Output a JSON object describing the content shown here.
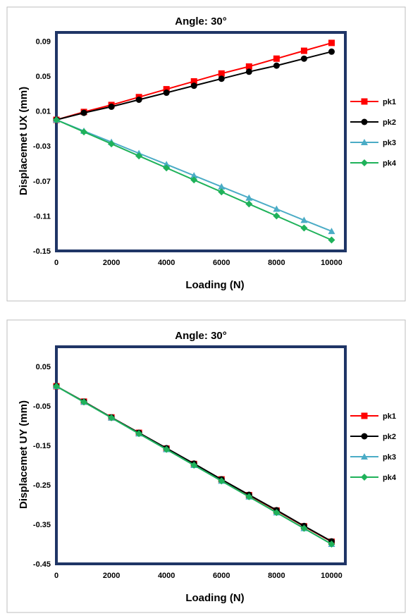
{
  "chart_data": [
    {
      "type": "line",
      "title": "Angle: 30°",
      "xlabel": "Loading (N)",
      "ylabel": "Displacemet UX (mm)",
      "xlim": [
        0,
        10500
      ],
      "ylim": [
        -0.15,
        0.1
      ],
      "xticks": [
        0,
        2000,
        4000,
        6000,
        8000,
        10000
      ],
      "yticks": [
        0.09,
        0.05,
        0.01,
        -0.03,
        -0.07,
        -0.11,
        -0.15
      ],
      "ytick_labels": [
        "0.09",
        "0.05",
        "0.01",
        "-0.03",
        "-0.07",
        "-0.11",
        "-0.15"
      ],
      "x": [
        0,
        1000,
        2000,
        3000,
        4000,
        5000,
        6000,
        7000,
        8000,
        9000,
        10000
      ],
      "series": [
        {
          "name": "pk1",
          "color": "#ff0000",
          "marker": "square",
          "values": [
            0.0,
            0.009,
            0.017,
            0.026,
            0.035,
            0.044,
            0.053,
            0.061,
            0.07,
            0.079,
            0.088
          ]
        },
        {
          "name": "pk2",
          "color": "#000000",
          "marker": "circle",
          "values": [
            0.0,
            0.008,
            0.015,
            0.023,
            0.031,
            0.039,
            0.047,
            0.055,
            0.062,
            0.07,
            0.078
          ]
        },
        {
          "name": "pk3",
          "color": "#4bacc6",
          "marker": "triangle",
          "values": [
            0.0,
            -0.0128,
            -0.0255,
            -0.0383,
            -0.051,
            -0.0638,
            -0.0765,
            -0.0893,
            -0.102,
            -0.1148,
            -0.1275
          ]
        },
        {
          "name": "pk4",
          "color": "#1fb25a",
          "marker": "diamond",
          "values": [
            0.0,
            -0.0138,
            -0.0275,
            -0.0413,
            -0.055,
            -0.0688,
            -0.0825,
            -0.0963,
            -0.11,
            -0.1238,
            -0.1375
          ]
        }
      ],
      "legend": "right"
    },
    {
      "type": "line",
      "title": "Angle: 30°",
      "xlabel": "Loading (N)",
      "ylabel": "Displacemet UY (mm)",
      "xlim": [
        0,
        10500
      ],
      "ylim": [
        -0.45,
        0.1
      ],
      "xticks": [
        0,
        2000,
        4000,
        6000,
        8000,
        10000
      ],
      "yticks": [
        0.05,
        -0.05,
        -0.15,
        -0.25,
        -0.35,
        -0.45
      ],
      "ytick_labels": [
        "0.05",
        "-0.05",
        "-0.15",
        "-0.25",
        "-0.35",
        "-0.45"
      ],
      "x": [
        0,
        1000,
        2000,
        3000,
        4000,
        5000,
        6000,
        7000,
        8000,
        9000,
        10000
      ],
      "series": [
        {
          "name": "pk1",
          "color": "#ff0000",
          "marker": "square",
          "values": [
            0.0,
            -0.039,
            -0.079,
            -0.118,
            -0.158,
            -0.197,
            -0.236,
            -0.276,
            -0.315,
            -0.355,
            -0.394
          ]
        },
        {
          "name": "pk2",
          "color": "#000000",
          "marker": "circle",
          "values": [
            0.0,
            -0.039,
            -0.079,
            -0.118,
            -0.157,
            -0.196,
            -0.236,
            -0.275,
            -0.314,
            -0.354,
            -0.393
          ]
        },
        {
          "name": "pk3",
          "color": "#4bacc6",
          "marker": "triangle",
          "values": [
            0.0,
            -0.04,
            -0.08,
            -0.12,
            -0.16,
            -0.2,
            -0.24,
            -0.28,
            -0.32,
            -0.36,
            -0.4
          ]
        },
        {
          "name": "pk4",
          "color": "#1fb25a",
          "marker": "diamond",
          "values": [
            0.0,
            -0.04,
            -0.08,
            -0.12,
            -0.16,
            -0.2,
            -0.24,
            -0.28,
            -0.32,
            -0.36,
            -0.4
          ]
        }
      ],
      "legend": "right"
    }
  ]
}
